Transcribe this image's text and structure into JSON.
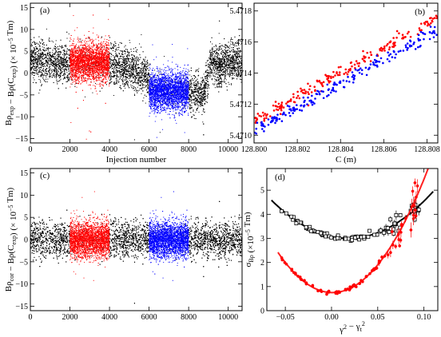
{
  "chart_data": [
    {
      "panel": "(a)",
      "type": "scatter",
      "title": "",
      "xlabel": "Injection number",
      "ylabel_main": "Bρ",
      "ylabel_sub1": "exp",
      "ylabel_mid": " − Bρ(C",
      "ylabel_sub2": "exp",
      "ylabel_unit": ") (× 10",
      "ylabel_exp": "−5",
      "ylabel_end": " Tm)",
      "xlim": [
        0,
        10700
      ],
      "ylim": [
        -16,
        16
      ],
      "xticks": [
        0,
        2000,
        4000,
        6000,
        8000,
        10000
      ],
      "yticks": [
        -15,
        -10,
        -5,
        0,
        5,
        10,
        15
      ],
      "series": [
        {
          "color": "#000000",
          "x_range": [
            0,
            10700
          ],
          "mean_profile_x": [
            0,
            1000,
            2000,
            4000,
            5000,
            5800,
            6200,
            7000,
            8000,
            8800,
            9100,
            9500,
            10700
          ],
          "mean_profile_y": [
            3,
            2.5,
            2,
            2,
            1,
            -0.5,
            -3,
            -4,
            -4.5,
            -5,
            2.5,
            2.5,
            2.5
          ],
          "spread": 2.2
        },
        {
          "color": "#ff0000",
          "x_range": [
            2000,
            4000
          ],
          "mean": 2.5,
          "spread": 2.2
        },
        {
          "color": "#0000ff",
          "x_range": [
            6000,
            8000
          ],
          "mean": -4.2,
          "spread": 2.2
        }
      ]
    },
    {
      "panel": "(b)",
      "type": "scatter",
      "title": "",
      "xlabel": "C (m)",
      "ylabel": "Bρ (Tm)",
      "xlim": [
        128.8,
        128.8085
      ],
      "ylim": [
        5.47095,
        5.47185
      ],
      "xticks": [
        "128.800",
        "128.802",
        "128.804",
        "128.806",
        "128.808"
      ],
      "yticks": [
        "5.4710",
        "5.4712",
        "5.4714",
        "5.4716",
        "5.4718"
      ],
      "series": [
        {
          "color": "#ff0000",
          "line_start": [
            128.8,
            5.47109
          ],
          "line_end": [
            128.8085,
            5.47176
          ],
          "spread": 2e-05
        },
        {
          "color": "#0000ff",
          "line_start": [
            128.8,
            5.47103
          ],
          "line_end": [
            128.8085,
            5.47168
          ],
          "spread": 2e-05
        }
      ]
    },
    {
      "panel": "(c)",
      "type": "scatter",
      "title": "",
      "xlabel": "",
      "ylabel_main": "Bρ",
      "ylabel_sub1": "cor",
      "ylabel_mid": " − Bρ(C",
      "ylabel_sub2": "exp",
      "ylabel_unit": ") (× 10",
      "ylabel_exp": "−5",
      "ylabel_end": " Tm)",
      "xlim": [
        0,
        10700
      ],
      "ylim": [
        -16,
        16
      ],
      "xticks": [
        0,
        2000,
        4000,
        6000,
        8000,
        10000
      ],
      "yticks": [
        -15,
        -10,
        -5,
        0,
        5,
        10,
        15
      ],
      "series": [
        {
          "color": "#000000",
          "x_range": [
            0,
            10700
          ],
          "mean": 0,
          "spread": 2.0
        },
        {
          "color": "#ff0000",
          "x_range": [
            2000,
            4000
          ],
          "mean": 0,
          "spread": 2.0
        },
        {
          "color": "#0000ff",
          "x_range": [
            6000,
            8000
          ],
          "mean": 0,
          "spread": 2.0
        }
      ]
    },
    {
      "panel": "(d)",
      "type": "scatter",
      "title": "",
      "xlabel_main": "γ",
      "xlabel_sup1": "2",
      "xlabel_mid": " − γ",
      "xlabel_sub": "t",
      "xlabel_sup2": "2",
      "ylabel_main": "σ",
      "ylabel_sub": "Bρ",
      "ylabel_unit": " (×10",
      "ylabel_exp": "−5",
      "ylabel_end": " Tm)",
      "xlim": [
        -0.07,
        0.115
      ],
      "ylim": [
        0,
        5.9
      ],
      "xticks": [
        -0.05,
        0,
        0.05,
        0.1
      ],
      "xtick_labels": [
        "−0.05",
        "0.00",
        "0.05",
        "0.10"
      ],
      "yticks": [
        0,
        1,
        2,
        3,
        4,
        5
      ],
      "series": [
        {
          "name_marker": "open-square",
          "color": "#000000",
          "fit_x0": 0.018,
          "fit_y0": 3.0,
          "fit_a": 230,
          "x_points": [
            -0.055,
            0.095
          ]
        },
        {
          "name_marker": "filled-circle",
          "color": "#ff0000",
          "fit_x0": 0.001,
          "fit_y0": 0.75,
          "fit_a": 480,
          "x_points": [
            -0.055,
            0.095
          ],
          "fit_color": "#ff2020"
        }
      ]
    }
  ]
}
